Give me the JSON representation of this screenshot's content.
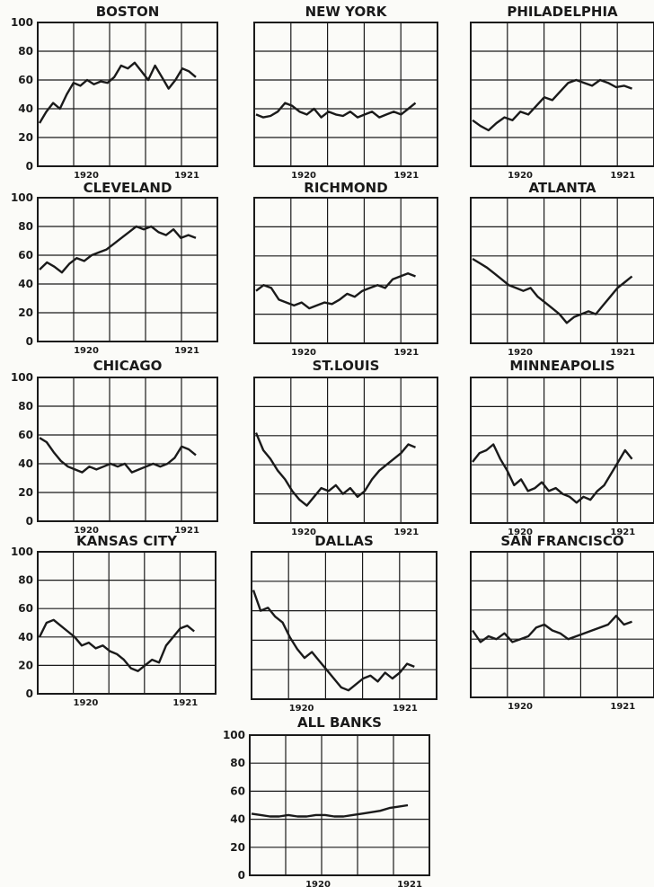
{
  "figure": {
    "ink_color": "#1a1a1a",
    "paper_color": "#fbfbf8"
  },
  "chart_data": [
    {
      "type": "line",
      "title": "BOSTON",
      "ylim": [
        0,
        100
      ],
      "yticks": [
        0,
        20,
        40,
        60,
        80,
        100
      ],
      "xticks": [
        {
          "label": "1920",
          "at": 0.27
        },
        {
          "label": "1921",
          "at": 0.83
        }
      ],
      "series": [
        {
          "values": [
            30,
            38,
            44,
            40,
            50,
            58,
            56,
            60,
            57,
            59,
            58,
            62,
            70,
            68,
            72,
            66,
            60,
            70,
            62,
            54,
            60,
            68,
            66,
            62
          ]
        }
      ]
    },
    {
      "type": "line",
      "title": "NEW YORK",
      "ylim": [
        0,
        100
      ],
      "yticks": [
        0,
        20,
        40,
        60,
        80,
        100
      ],
      "xticks": [
        {
          "label": "1920",
          "at": 0.27
        },
        {
          "label": "1921",
          "at": 0.83
        }
      ],
      "series": [
        {
          "values": [
            36,
            34,
            35,
            38,
            44,
            42,
            38,
            36,
            40,
            34,
            38,
            36,
            35,
            38,
            34,
            36,
            38,
            34,
            36,
            38,
            36,
            40,
            44
          ]
        }
      ]
    },
    {
      "type": "line",
      "title": "PHILADELPHIA",
      "ylim": [
        0,
        100
      ],
      "yticks": [
        0,
        20,
        40,
        60,
        80,
        100
      ],
      "xticks": [
        {
          "label": "1920",
          "at": 0.27
        },
        {
          "label": "1921",
          "at": 0.83
        }
      ],
      "series": [
        {
          "values": [
            32,
            28,
            25,
            30,
            34,
            32,
            38,
            36,
            42,
            48,
            46,
            52,
            58,
            60,
            58,
            56,
            60,
            58,
            55,
            56,
            54
          ]
        }
      ]
    },
    {
      "type": "line",
      "title": "CLEVELAND",
      "ylim": [
        0,
        100
      ],
      "yticks": [
        0,
        20,
        40,
        60,
        80,
        100
      ],
      "xticks": [
        {
          "label": "1920",
          "at": 0.27
        },
        {
          "label": "1921",
          "at": 0.83
        }
      ],
      "series": [
        {
          "values": [
            50,
            55,
            52,
            48,
            54,
            58,
            56,
            60,
            62,
            64,
            68,
            72,
            76,
            80,
            78,
            80,
            76,
            74,
            78,
            72,
            74,
            72
          ]
        }
      ]
    },
    {
      "type": "line",
      "title": "RICHMOND",
      "ylim": [
        0,
        100
      ],
      "yticks": [
        0,
        20,
        40,
        60,
        80,
        100
      ],
      "xticks": [
        {
          "label": "1920",
          "at": 0.27
        },
        {
          "label": "1921",
          "at": 0.83
        }
      ],
      "series": [
        {
          "values": [
            36,
            40,
            38,
            30,
            28,
            26,
            28,
            24,
            26,
            28,
            27,
            30,
            34,
            32,
            36,
            38,
            40,
            38,
            44,
            46,
            48,
            46
          ]
        }
      ]
    },
    {
      "type": "line",
      "title": "ATLANTA",
      "ylim": [
        0,
        100
      ],
      "yticks": [
        0,
        20,
        40,
        60,
        80,
        100
      ],
      "xticks": [
        {
          "label": "1920",
          "at": 0.27
        },
        {
          "label": "1921",
          "at": 0.83
        }
      ],
      "series": [
        {
          "values": [
            58,
            55,
            52,
            48,
            44,
            40,
            38,
            36,
            38,
            32,
            28,
            24,
            20,
            14,
            18,
            20,
            22,
            20,
            26,
            32,
            38,
            42,
            46
          ]
        }
      ]
    },
    {
      "type": "line",
      "title": "CHICAGO",
      "ylim": [
        0,
        100
      ],
      "yticks": [
        0,
        20,
        40,
        60,
        80,
        100
      ],
      "xticks": [
        {
          "label": "1920",
          "at": 0.27
        },
        {
          "label": "1921",
          "at": 0.83
        }
      ],
      "series": [
        {
          "values": [
            58,
            55,
            48,
            42,
            38,
            36,
            34,
            38,
            36,
            38,
            40,
            38,
            40,
            34,
            36,
            38,
            40,
            38,
            40,
            44,
            52,
            50,
            46
          ]
        }
      ]
    },
    {
      "type": "line",
      "title": "ST.LOUIS",
      "ylim": [
        0,
        100
      ],
      "yticks": [
        0,
        20,
        40,
        60,
        80,
        100
      ],
      "xticks": [
        {
          "label": "1920",
          "at": 0.27
        },
        {
          "label": "1921",
          "at": 0.83
        }
      ],
      "series": [
        {
          "values": [
            62,
            50,
            44,
            36,
            30,
            22,
            16,
            12,
            18,
            24,
            22,
            26,
            20,
            24,
            18,
            22,
            30,
            36,
            40,
            44,
            48,
            54,
            52
          ]
        }
      ]
    },
    {
      "type": "line",
      "title": "MINNEAPOLIS",
      "ylim": [
        0,
        100
      ],
      "yticks": [
        0,
        20,
        40,
        60,
        80,
        100
      ],
      "xticks": [
        {
          "label": "1920",
          "at": 0.27
        },
        {
          "label": "1921",
          "at": 0.83
        }
      ],
      "series": [
        {
          "values": [
            42,
            48,
            50,
            54,
            44,
            36,
            26,
            30,
            22,
            24,
            28,
            22,
            24,
            20,
            18,
            14,
            18,
            16,
            22,
            26,
            34,
            42,
            50,
            44
          ]
        }
      ]
    },
    {
      "type": "line",
      "title": "KANSAS CITY",
      "ylim": [
        0,
        100
      ],
      "yticks": [
        0,
        20,
        40,
        60,
        80,
        100
      ],
      "xticks": [
        {
          "label": "1920",
          "at": 0.27
        },
        {
          "label": "1921",
          "at": 0.83
        }
      ],
      "series": [
        {
          "values": [
            40,
            50,
            52,
            48,
            44,
            40,
            34,
            36,
            32,
            34,
            30,
            28,
            24,
            18,
            16,
            20,
            24,
            22,
            34,
            40,
            46,
            48,
            44
          ]
        }
      ]
    },
    {
      "type": "line",
      "title": "DALLAS",
      "ylim": [
        0,
        100
      ],
      "yticks": [
        0,
        20,
        40,
        60,
        80,
        100
      ],
      "xticks": [
        {
          "label": "1920",
          "at": 0.27
        },
        {
          "label": "1921",
          "at": 0.83
        }
      ],
      "series": [
        {
          "values": [
            74,
            60,
            62,
            56,
            52,
            42,
            34,
            28,
            32,
            26,
            20,
            14,
            8,
            6,
            10,
            14,
            16,
            12,
            18,
            14,
            18,
            24,
            22
          ]
        }
      ]
    },
    {
      "type": "line",
      "title": "SAN FRANCISCO",
      "ylim": [
        0,
        100
      ],
      "yticks": [
        0,
        20,
        40,
        60,
        80,
        100
      ],
      "xticks": [
        {
          "label": "1920",
          "at": 0.27
        },
        {
          "label": "1921",
          "at": 0.83
        }
      ],
      "series": [
        {
          "values": [
            46,
            38,
            42,
            40,
            44,
            38,
            40,
            42,
            48,
            50,
            46,
            44,
            40,
            42,
            44,
            46,
            48,
            50,
            56,
            50,
            52
          ]
        }
      ]
    },
    {
      "type": "line",
      "title": "ALL BANKS",
      "ylim": [
        0,
        100
      ],
      "yticks": [
        0,
        20,
        40,
        60,
        80,
        100
      ],
      "xticks": [
        {
          "label": "1920",
          "at": 0.38
        },
        {
          "label": "1921",
          "at": 0.89
        }
      ],
      "series": [
        {
          "values": [
            44,
            43,
            42,
            42,
            43,
            42,
            42,
            43,
            43,
            42,
            42,
            43,
            44,
            45,
            46,
            48,
            49,
            50
          ]
        }
      ]
    }
  ]
}
